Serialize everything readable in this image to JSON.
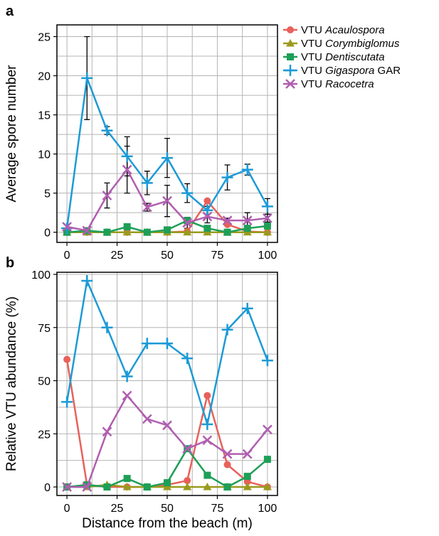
{
  "chart_data": [
    {
      "panel": "a",
      "type": "line",
      "ylabel": "Average spore number",
      "xlabel": "",
      "xlim": [
        -5,
        105
      ],
      "ylim": [
        -1.3,
        26.5
      ],
      "x_ticks": [
        0,
        25,
        50,
        75,
        100
      ],
      "y_ticks": [
        0,
        5,
        10,
        15,
        20,
        25
      ],
      "grid": true,
      "x": [
        0,
        10,
        20,
        30,
        40,
        50,
        60,
        70,
        80,
        90,
        100
      ],
      "series": [
        {
          "name_prefix": "VTU ",
          "name_italic": "Acaulospora",
          "name_suffix": "",
          "color": "#e8615a",
          "marker": "circle",
          "values": [
            0,
            0,
            0,
            0,
            0,
            0,
            0.1,
            4.0,
            1.0,
            0.1,
            0.0
          ]
        },
        {
          "name_prefix": "VTU ",
          "name_italic": "Corymbiglomus",
          "name_suffix": "",
          "color": "#9a9a1e",
          "marker": "triangle",
          "values": [
            0,
            0,
            0,
            0,
            0,
            0,
            0,
            0,
            0,
            0,
            0
          ]
        },
        {
          "name_prefix": "VTU ",
          "name_italic": "Dentiscutata",
          "name_suffix": "",
          "color": "#1e9f57",
          "marker": "square",
          "values": [
            0,
            0.2,
            0,
            0.7,
            0,
            0.3,
            1.5,
            0.5,
            0,
            0.5,
            0.8
          ]
        },
        {
          "name_prefix": "VTU ",
          "name_italic": "Gigaspora",
          "name_suffix": " GAR",
          "color": "#1c9ad6",
          "marker": "plus",
          "values": [
            0.5,
            19.7,
            13.0,
            9.7,
            6.3,
            9.5,
            5.0,
            2.8,
            7.0,
            8.0,
            3.3
          ],
          "error": [
            0,
            5.3,
            0.5,
            2.5,
            1.5,
            2.5,
            1.2,
            0.5,
            1.6,
            0.7,
            1.0
          ]
        },
        {
          "name_prefix": "VTU ",
          "name_italic": "Racocetra",
          "name_suffix": "",
          "color": "#b05eb0",
          "marker": "x",
          "values": [
            0.7,
            0.2,
            4.7,
            8.0,
            3.2,
            4.0,
            1.2,
            2.0,
            1.5,
            1.5,
            1.8
          ],
          "error": [
            0,
            0,
            1.6,
            3.0,
            0.5,
            2.0,
            0.7,
            0.8,
            0.3,
            1.0,
            0.5
          ]
        }
      ],
      "legend": "right"
    },
    {
      "panel": "b",
      "type": "line",
      "ylabel": "Relative VTU abundance (%)",
      "xlabel": "Distance from the beach (m)",
      "xlim": [
        -5,
        105
      ],
      "ylim": [
        -4,
        101
      ],
      "x_ticks": [
        0,
        25,
        50,
        75,
        100
      ],
      "y_ticks": [
        0,
        25,
        50,
        75,
        100
      ],
      "grid": true,
      "x": [
        0,
        10,
        20,
        30,
        40,
        50,
        60,
        70,
        80,
        90,
        100
      ],
      "series": [
        {
          "name": "VTU Acaulospora",
          "color": "#e8615a",
          "marker": "circle",
          "values": [
            60,
            1,
            0,
            0,
            0,
            1,
            3,
            43,
            10.5,
            2.5,
            0
          ]
        },
        {
          "name": "VTU Corymbiglomus",
          "color": "#9a9a1e",
          "marker": "triangle",
          "values": [
            0,
            0,
            1,
            0,
            0,
            0,
            0,
            0,
            0,
            0,
            0
          ]
        },
        {
          "name": "VTU Dentiscutata",
          "color": "#1e9f57",
          "marker": "square",
          "values": [
            0,
            1,
            0,
            4,
            0,
            2,
            18,
            5.5,
            0,
            5,
            13
          ]
        },
        {
          "name": "VTU Gigaspora GAR",
          "color": "#1c9ad6",
          "marker": "plus",
          "values": [
            40,
            97,
            75,
            52,
            67.5,
            67.5,
            60.5,
            29.5,
            74,
            84,
            59.5
          ]
        },
        {
          "name": "VTU Racocetra",
          "color": "#b05eb0",
          "marker": "x",
          "values": [
            0,
            0,
            26,
            43,
            32,
            29,
            18,
            22,
            15.5,
            15.5,
            27
          ]
        }
      ]
    }
  ]
}
